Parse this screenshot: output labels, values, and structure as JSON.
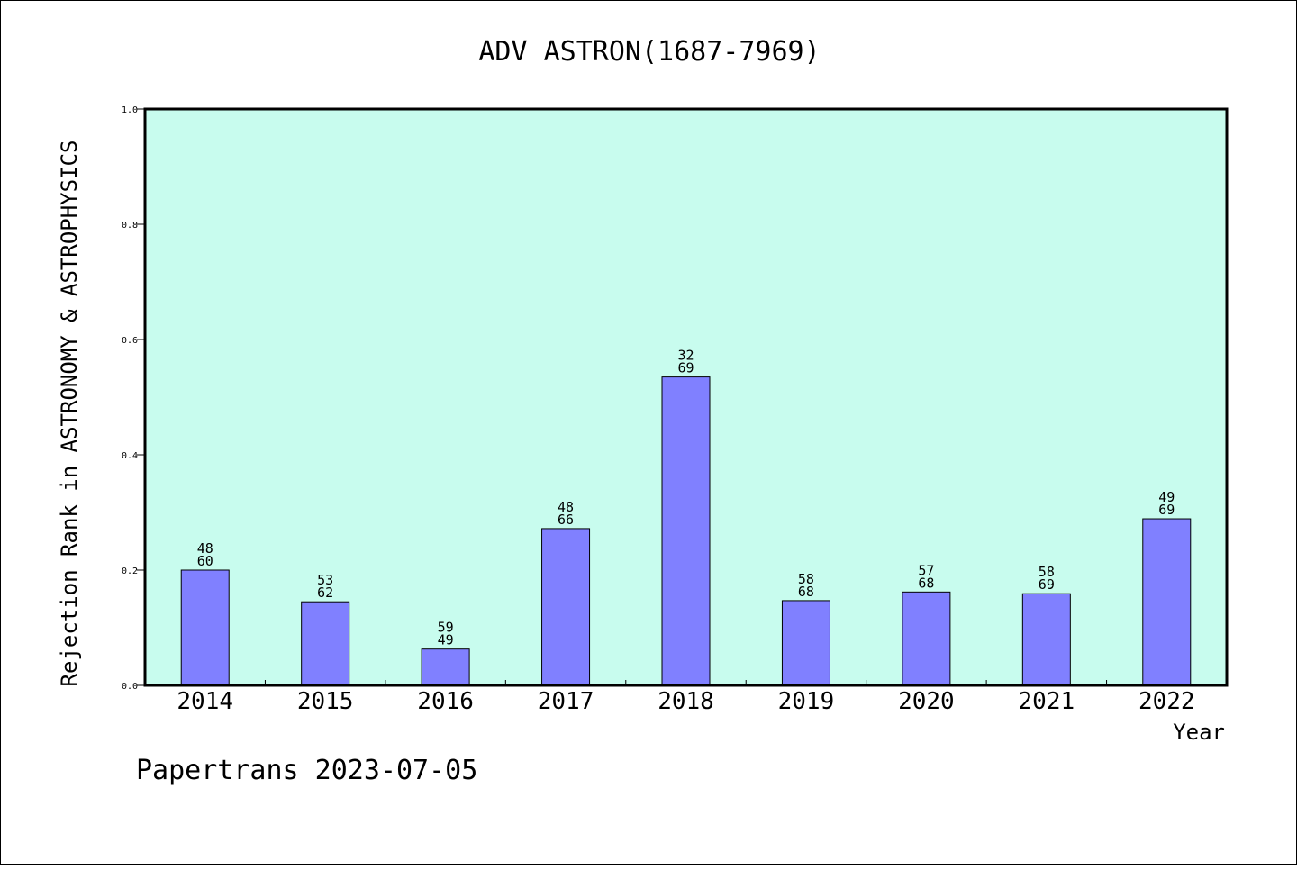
{
  "chart_data": {
    "type": "bar",
    "title": "ADV ASTRON(1687-7969)",
    "xlabel": "Year",
    "ylabel": "Rejection Rank in ASTRONOMY & ASTROPHYSICS",
    "ylim": [
      0,
      1.0
    ],
    "yticks": [
      "0.0",
      "0.2",
      "0.4",
      "0.6",
      "0.8",
      "1.0"
    ],
    "grid": false,
    "categories": [
      "2014",
      "2015",
      "2016",
      "2017",
      "2018",
      "2019",
      "2020",
      "2021",
      "2022"
    ],
    "values": [
      0.2,
      0.145,
      0.063,
      0.272,
      0.535,
      0.147,
      0.162,
      0.159,
      0.289
    ],
    "bar_labels": [
      [
        "48",
        "60"
      ],
      [
        "53",
        "62"
      ],
      [
        "59",
        "49"
      ],
      [
        "48",
        "66"
      ],
      [
        "32",
        "69"
      ],
      [
        "58",
        "68"
      ],
      [
        "57",
        "68"
      ],
      [
        "58",
        "69"
      ],
      [
        "49",
        "69"
      ]
    ],
    "colors": {
      "bar": "#8080ff",
      "plot_background": "#c8fcee"
    }
  },
  "footer": "Papertrans 2023-07-05"
}
